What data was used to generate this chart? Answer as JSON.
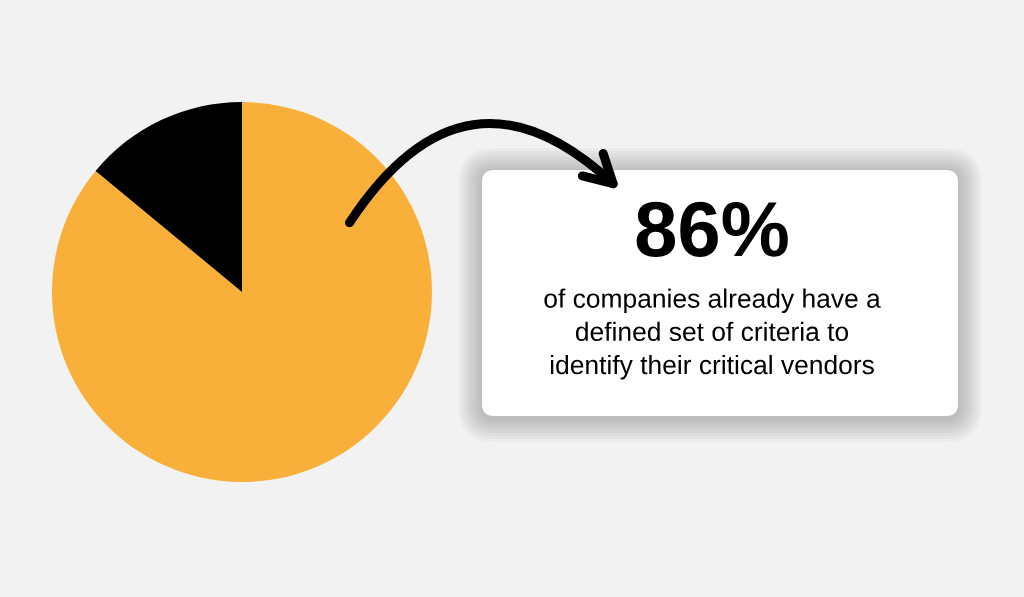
{
  "chart_data": {
    "type": "pie",
    "categories": [
      null,
      null
    ],
    "values": [
      86,
      14
    ],
    "colors": [
      "#f9b03b",
      "#000000"
    ],
    "annotations": [
      "86%",
      "of companies already have a\ndefined set of criteria to\nidentify their critical vendors"
    ]
  }
}
